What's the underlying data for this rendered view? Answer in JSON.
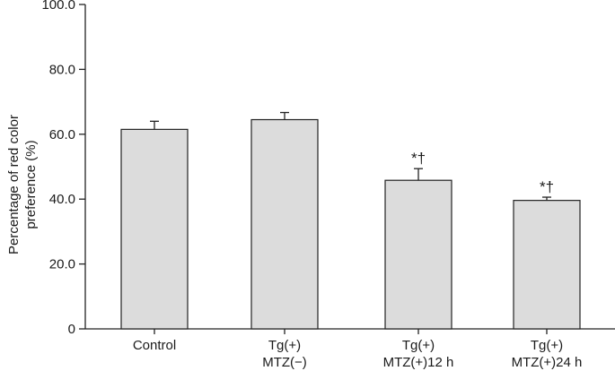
{
  "chart_data": {
    "type": "bar",
    "title": "",
    "xlabel": "",
    "ylabel": [
      "Percentage of red color",
      "preference (%)"
    ],
    "ylim": [
      0,
      100
    ],
    "yticks": [
      "0",
      "20.0",
      "40.0",
      "60.0",
      "80.0",
      "100.0"
    ],
    "ytick_values": [
      0,
      20,
      40,
      60,
      80,
      100
    ],
    "grid": false,
    "legend": "none",
    "categories": [
      [
        "Control"
      ],
      [
        "Tg(+)",
        "MTZ(−)"
      ],
      [
        "Tg(+)",
        "MTZ(+)12 h"
      ],
      [
        "Tg(+)",
        "MTZ(+)24 h"
      ]
    ],
    "values": [
      61.5,
      64.5,
      45.8,
      39.6
    ],
    "error_upper": [
      2.5,
      2.2,
      3.6,
      1.0
    ],
    "annotations": [
      "",
      "",
      "*†",
      "*†"
    ],
    "bar_color": "#dcdcdc",
    "edge_color": "#222222"
  }
}
